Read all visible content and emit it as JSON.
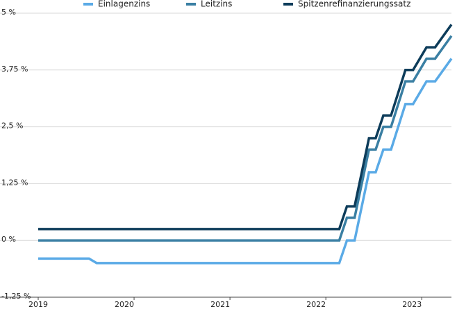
{
  "chart_data": {
    "type": "line",
    "x": [
      2019,
      2019.53,
      2019.61,
      2022.14,
      2022.22,
      2022.3,
      2022.45,
      2022.52,
      2022.6,
      2022.68,
      2022.83,
      2022.91,
      2023.05,
      2023.14,
      2023.31
    ],
    "series": [
      {
        "name": "Einlagenzins",
        "color": "#5aaae6",
        "values": [
          -0.4,
          -0.4,
          -0.5,
          -0.5,
          0,
          0,
          1.5,
          1.5,
          2,
          2,
          3,
          3,
          3.5,
          3.5,
          4
        ]
      },
      {
        "name": "Leitzins",
        "color": "#3a7fa3",
        "values": [
          0,
          0,
          0,
          0,
          0.5,
          0.5,
          2,
          2,
          2.5,
          2.5,
          3.5,
          3.5,
          4,
          4,
          4.5
        ]
      },
      {
        "name": "Spitzenrefinanzierungssatz",
        "color": "#0d3c5a",
        "values": [
          0.25,
          0.25,
          0.25,
          0.25,
          0.75,
          0.75,
          2.25,
          2.25,
          2.75,
          2.75,
          3.75,
          3.75,
          4.25,
          4.25,
          4.75
        ]
      }
    ],
    "xlim": [
      2019,
      2023.31
    ],
    "xticks": [
      2019,
      2020,
      2021,
      2022,
      2023
    ],
    "ylim": [
      -1.25,
      5
    ],
    "yticks": [
      {
        "value": -1.25,
        "label": "-1,25 %"
      },
      {
        "value": 0,
        "label": "0 %"
      },
      {
        "value": 1.25,
        "label": "1,25 %"
      },
      {
        "value": 2.5,
        "label": "2,5 %"
      },
      {
        "value": 3.75,
        "label": "3,75 %"
      },
      {
        "value": 5,
        "label": "5 %"
      }
    ],
    "grid": true,
    "legend": "top"
  }
}
